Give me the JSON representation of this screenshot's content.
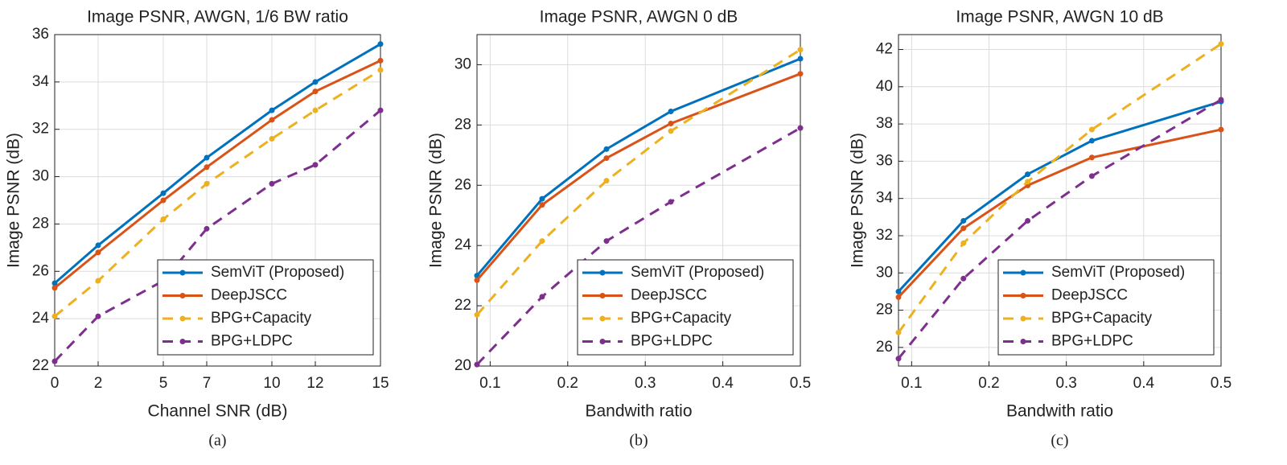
{
  "chart_data": [
    {
      "type": "line",
      "title": "Image PSNR, AWGN, 1/6 BW ratio",
      "x_label": "Channel SNR (dB)",
      "y_label": "Image PSNR (dB)",
      "caption": "(a)",
      "x": [
        0,
        2,
        5,
        7,
        10,
        12,
        15
      ],
      "xlim": [
        0,
        15
      ],
      "xticks": [
        0,
        2,
        5,
        7,
        10,
        12,
        15
      ],
      "ylim": [
        22,
        36
      ],
      "yticks": [
        22,
        24,
        26,
        28,
        30,
        32,
        34,
        36
      ],
      "grid": true,
      "legend": "lower right",
      "series": [
        {
          "name": "SemViT (Proposed)",
          "color": "#0072bd",
          "dashed": false,
          "values": [
            25.5,
            27.1,
            29.3,
            30.8,
            32.8,
            34.0,
            35.6
          ]
        },
        {
          "name": "DeepJSCC",
          "color": "#d95319",
          "dashed": false,
          "values": [
            25.3,
            26.8,
            29.0,
            30.4,
            32.4,
            33.6,
            34.9
          ]
        },
        {
          "name": "BPG+Capacity",
          "color": "#edb120",
          "dashed": true,
          "values": [
            24.1,
            25.6,
            28.2,
            29.7,
            31.6,
            32.8,
            34.5
          ]
        },
        {
          "name": "BPG+LDPC",
          "color": "#7e2f8e",
          "dashed": true,
          "values": [
            22.2,
            24.1,
            25.6,
            27.8,
            29.7,
            30.5,
            32.8
          ]
        }
      ]
    },
    {
      "type": "line",
      "title": "Image PSNR, AWGN 0 dB",
      "x_label": "Bandwith ratio",
      "y_label": "Image PSNR (dB)",
      "caption": "(b)",
      "x": [
        0.083,
        0.167,
        0.25,
        0.333,
        0.5
      ],
      "xlim": [
        0.083,
        0.5
      ],
      "xticks": [
        0.1,
        0.2,
        0.3,
        0.4,
        0.5
      ],
      "ylim": [
        20,
        31
      ],
      "yticks": [
        20,
        22,
        24,
        26,
        28,
        30
      ],
      "grid": true,
      "legend": "lower right",
      "series": [
        {
          "name": "SemViT (Proposed)",
          "color": "#0072bd",
          "dashed": false,
          "values": [
            23.0,
            25.55,
            27.2,
            28.45,
            30.2
          ]
        },
        {
          "name": "DeepJSCC",
          "color": "#d95319",
          "dashed": false,
          "values": [
            22.85,
            25.35,
            26.9,
            28.05,
            29.7
          ]
        },
        {
          "name": "BPG+Capacity",
          "color": "#edb120",
          "dashed": true,
          "values": [
            21.7,
            24.15,
            26.15,
            27.8,
            30.5
          ]
        },
        {
          "name": "BPG+LDPC",
          "color": "#7e2f8e",
          "dashed": true,
          "values": [
            20.05,
            22.3,
            24.15,
            25.45,
            27.9
          ]
        }
      ]
    },
    {
      "type": "line",
      "title": "Image PSNR, AWGN 10 dB",
      "x_label": "Bandwith ratio",
      "y_label": "Image PSNR (dB)",
      "caption": "(c)",
      "x": [
        0.083,
        0.167,
        0.25,
        0.333,
        0.5
      ],
      "xlim": [
        0.083,
        0.5
      ],
      "xticks": [
        0.1,
        0.2,
        0.3,
        0.4,
        0.5
      ],
      "ylim": [
        25,
        42.8
      ],
      "yticks": [
        26,
        28,
        30,
        32,
        34,
        36,
        38,
        40,
        42
      ],
      "grid": true,
      "legend": "lower right",
      "series": [
        {
          "name": "SemViT (Proposed)",
          "color": "#0072bd",
          "dashed": false,
          "values": [
            29.0,
            32.8,
            35.3,
            37.1,
            39.2
          ]
        },
        {
          "name": "DeepJSCC",
          "color": "#d95319",
          "dashed": false,
          "values": [
            28.7,
            32.4,
            34.7,
            36.2,
            37.7
          ]
        },
        {
          "name": "BPG+Capacity",
          "color": "#edb120",
          "dashed": true,
          "values": [
            26.8,
            31.6,
            34.9,
            37.7,
            42.3
          ]
        },
        {
          "name": "BPG+LDPC",
          "color": "#7e2f8e",
          "dashed": true,
          "values": [
            25.4,
            29.7,
            32.8,
            35.2,
            39.3
          ]
        }
      ]
    }
  ]
}
